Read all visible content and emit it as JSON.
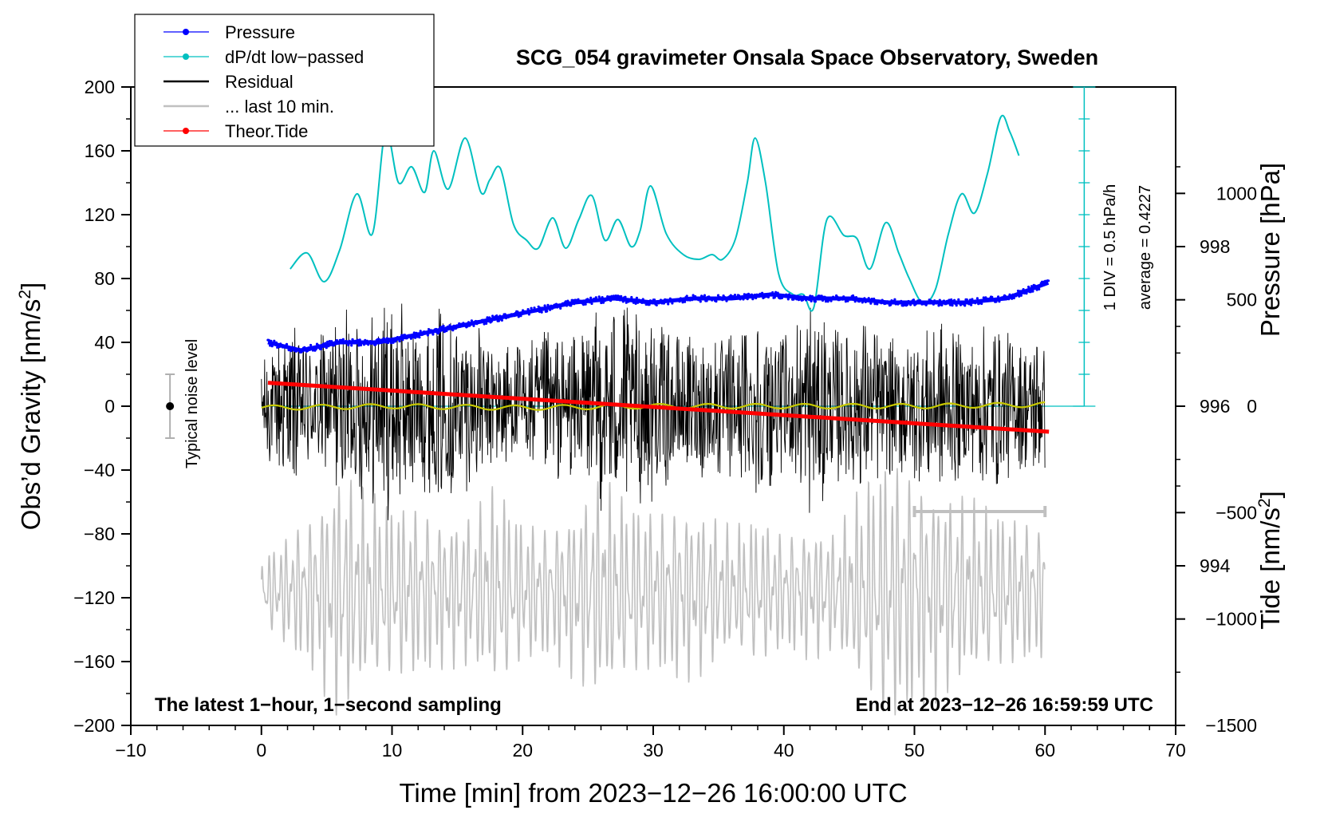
{
  "chart_data": {
    "type": "line",
    "title": "SCG_054 gravimeter Onsala Space Observatory, Sweden",
    "xlabel": "Time [min] from 2023−12−26 16:00:00 UTC",
    "ylabel": "Obs’d Gravity [nm/s",
    "ylabel_sup": "2",
    "ylabel_end": "]",
    "xlim": [
      -10,
      70
    ],
    "ylim": [
      -200,
      200
    ],
    "x_ticks": [
      -10,
      0,
      10,
      20,
      30,
      40,
      50,
      60,
      70
    ],
    "x_tick_labels": [
      "−10",
      "0",
      "10",
      "20",
      "30",
      "40",
      "50",
      "60",
      "70"
    ],
    "y_ticks": [
      -200,
      -160,
      -120,
      -80,
      -40,
      0,
      40,
      80,
      120,
      160,
      200
    ],
    "y_tick_labels": [
      "−200",
      "−160",
      "−120",
      "−80",
      "−40",
      "0",
      "40",
      "80",
      "120",
      "160",
      "200"
    ],
    "pressure_axis": {
      "label": "Pressure [hPa]",
      "ticks": [
        994,
        996,
        998
      ],
      "tick_labels": [
        "994",
        "996",
        "998"
      ],
      "range": [
        992,
        1000
      ]
    },
    "tide_axis": {
      "label": "Tide [nm/s",
      "label_sup": "2",
      "label_end": "]",
      "ticks": [
        -1500,
        -1000,
        -500,
        0,
        500,
        1000
      ],
      "tick_labels": [
        "−1500",
        "−1000",
        "−500",
        "0",
        "500",
        "1000"
      ],
      "range": [
        -1500,
        1500
      ]
    },
    "legend": {
      "placement": "top-left",
      "entries": [
        {
          "label": "Pressure",
          "color": "#0000ff",
          "marker": true
        },
        {
          "label": "dP/dt low−passed",
          "color": "#00c0c0",
          "marker": true
        },
        {
          "label": "Residual",
          "color": "#000000",
          "marker": false
        },
        {
          "label": "... last 10 min.",
          "color": "#c0c0c0",
          "marker": false
        },
        {
          "label": "Theor.Tide",
          "color": "#ff0000",
          "marker": true
        }
      ]
    },
    "dpdt_scale": {
      "label": "1 DIV = 0.5 hPa/h",
      "average": "average = 0.4227",
      "baseline_pressure": 996
    },
    "noise_level": {
      "label": "Typical noise level",
      "x": -7,
      "y": 0,
      "half_range": 20
    },
    "last10_span": {
      "x_start": 50,
      "x_end": 60,
      "y": -66
    },
    "notes": {
      "left": "The latest 1−hour, 1−second sampling",
      "right": "End at 2023−12−26 16:59:59 UTC"
    },
    "series": [
      {
        "name": "Pressure",
        "axis": "pressure",
        "color": "#0000ff",
        "x": [
          0.5,
          3,
          6,
          9,
          12,
          15,
          18,
          21,
          24,
          27,
          30,
          33,
          36,
          39,
          42,
          45,
          48,
          51,
          54,
          57,
          60.3
        ],
        "values": [
          996.8,
          996.7,
          996.8,
          996.8,
          996.9,
          997.0,
          997.1,
          997.2,
          997.3,
          997.35,
          997.3,
          997.35,
          997.35,
          997.4,
          997.35,
          997.35,
          997.3,
          997.3,
          997.3,
          997.35,
          997.55
        ]
      },
      {
        "name": "dP/dt low−passed",
        "axis": "gravity",
        "color": "#00c0c0",
        "x": [
          2.2,
          3.5,
          4.8,
          6.0,
          7.3,
          8.5,
          9.5,
          10.5,
          11.5,
          12.5,
          13.2,
          14.3,
          15.6,
          16.8,
          17.5,
          18.3,
          19.3,
          20.3,
          21.2,
          22.3,
          23.3,
          24.3,
          25.3,
          26.3,
          27.3,
          28.3,
          29.0,
          29.8,
          31.0,
          32.3,
          33.5,
          34.5,
          35.3,
          36.3,
          37.2,
          37.8,
          38.6,
          39.6,
          40.7,
          41.5,
          42.3,
          43.3,
          44.6,
          45.6,
          46.6,
          47.8,
          48.8,
          49.6,
          50.6,
          51.6,
          52.6,
          53.6,
          54.6,
          55.6,
          56.6,
          57.3,
          58.0
        ],
        "values": [
          86,
          96,
          78,
          98,
          133,
          108,
          172,
          140,
          150,
          134,
          160,
          136,
          168,
          134,
          142,
          149,
          114,
          104,
          99,
          118,
          99,
          117,
          132,
          104,
          117,
          100,
          110,
          138,
          108,
          95,
          92,
          95,
          92,
          105,
          140,
          168,
          140,
          83,
          70,
          70,
          62,
          117,
          107,
          105,
          86,
          115,
          96,
          80,
          65,
          73,
          108,
          133,
          121,
          146,
          181,
          172,
          157
        ]
      },
      {
        "name": "Residual",
        "axis": "gravity",
        "color": "#000000",
        "x_range": [
          0,
          60
        ],
        "envelope_minutes": [
          0,
          2,
          4,
          6,
          8,
          10,
          12,
          14,
          16,
          18,
          20,
          22,
          24,
          26,
          28,
          30,
          32,
          34,
          36,
          38,
          40,
          42,
          44,
          46,
          48,
          50,
          52,
          54,
          56,
          58,
          60
        ],
        "envelope_amplitude": [
          32,
          55,
          40,
          62,
          60,
          75,
          55,
          65,
          52,
          45,
          40,
          50,
          45,
          70,
          65,
          62,
          45,
          50,
          48,
          60,
          45,
          72,
          50,
          58,
          45,
          50,
          58,
          45,
          55,
          42,
          50
        ],
        "mean": 0
      },
      {
        "name": "Mean residual",
        "axis": "gravity",
        "color": "#c8c800",
        "x": [
          0,
          10,
          20,
          30,
          40,
          50,
          60
        ],
        "values": [
          -1,
          0,
          -1,
          0,
          0,
          0,
          1
        ]
      },
      {
        "name": "... last 10 min.",
        "axis": "gravity",
        "color": "#c0c0c0",
        "x_range": [
          0,
          60
        ],
        "center": -116,
        "envelope_minutes": [
          0,
          4,
          6,
          8,
          10,
          12,
          14,
          16,
          18,
          20,
          22,
          24,
          26,
          28,
          30,
          32,
          34,
          36,
          38,
          40,
          42,
          44,
          46,
          48,
          50,
          52,
          54,
          56,
          58,
          60
        ],
        "envelope_amplitude": [
          22,
          55,
          85,
          65,
          60,
          58,
          50,
          52,
          70,
          48,
          45,
          58,
          75,
          60,
          55,
          60,
          55,
          42,
          50,
          40,
          45,
          40,
          70,
          92,
          80,
          70,
          62,
          55,
          50,
          45
        ]
      },
      {
        "name": "Theor.Tide",
        "axis": "tide",
        "color": "#ff0000",
        "x": [
          0.5,
          60.3
        ],
        "values": [
          110,
          -120
        ]
      }
    ]
  }
}
